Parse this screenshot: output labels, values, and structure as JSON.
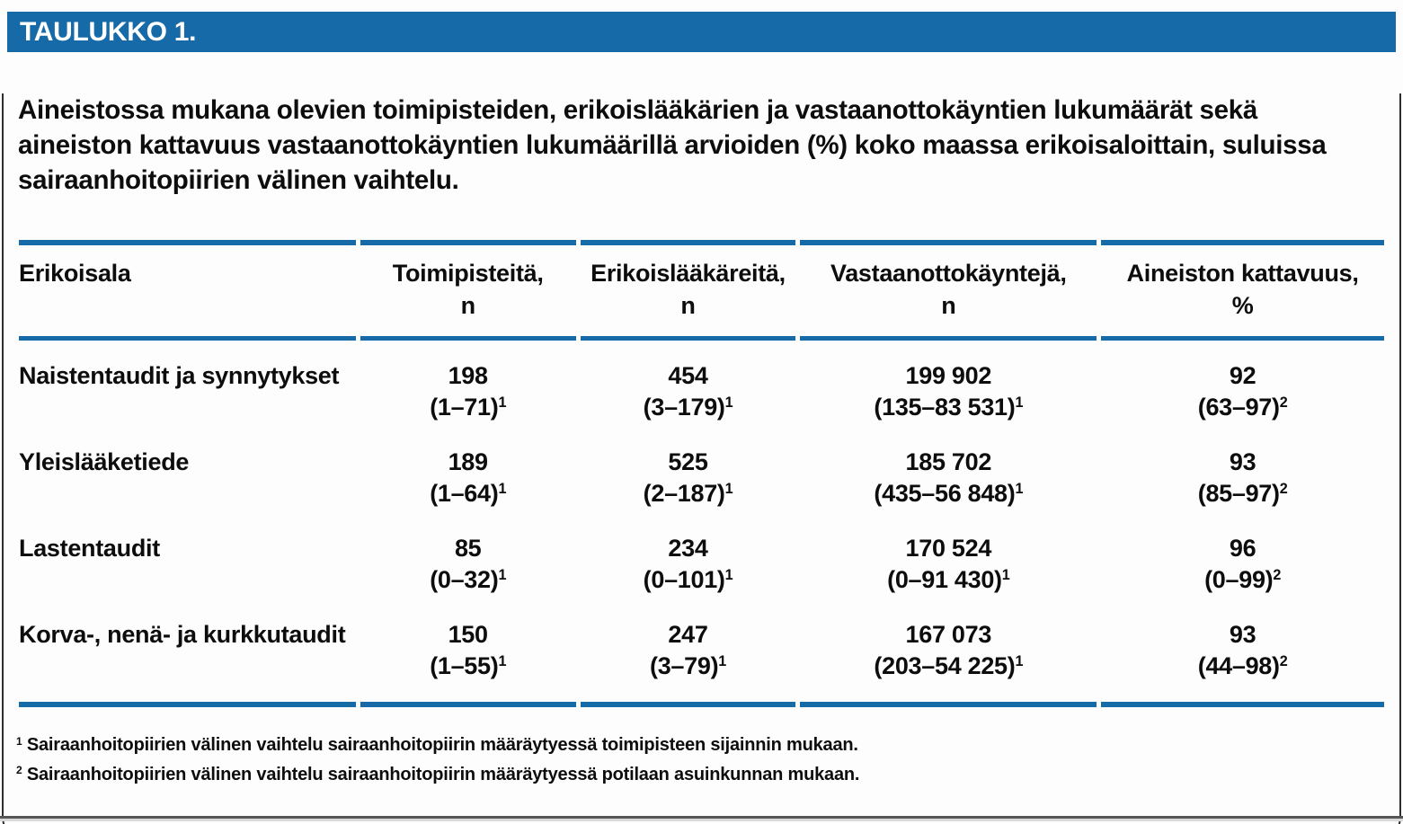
{
  "page": {
    "tag_label": "TAULUKKO 1.",
    "title": "Aineistossa mukana olevien toimipisteiden, erikoislääkärien ja vastaanottokäyntien lukumäärät sekä aineiston kattavuus vastaanottokäyntien lukumäärillä arvioiden (%) koko maassa erikoisaloittain, suluissa sairaanhoitopiirien välinen vaihtelu."
  },
  "colors": {
    "accent_blue": "#176AA8",
    "card_border": "#2e2e2e",
    "text": "#0d0d0d"
  },
  "table": {
    "columns": [
      {
        "label": "Erikoisala",
        "sub": ""
      },
      {
        "label": "Toimipisteitä,",
        "sub": "n"
      },
      {
        "label": "Erikoislääkäreitä,",
        "sub": "n"
      },
      {
        "label": "Vastaanottokäyntejä,",
        "sub": "n"
      },
      {
        "label": "Aineiston kattavuus,",
        "sub": "%"
      }
    ],
    "rows": [
      {
        "name": "Naistentaudit ja synnytykset",
        "cells": [
          {
            "value": "198",
            "range": "(1–71)",
            "sup": "1"
          },
          {
            "value": "454",
            "range": "(3–179)",
            "sup": "1"
          },
          {
            "value": "199 902",
            "range": "(135–83 531)",
            "sup": "1"
          },
          {
            "value": "92",
            "range": "(63–97)",
            "sup": "2"
          }
        ]
      },
      {
        "name": "Yleislääketiede",
        "cells": [
          {
            "value": "189",
            "range": "(1–64)",
            "sup": "1"
          },
          {
            "value": "525",
            "range": "(2–187)",
            "sup": "1"
          },
          {
            "value": "185 702",
            "range": "(435–56 848)",
            "sup": "1"
          },
          {
            "value": "93",
            "range": "(85–97)",
            "sup": "2"
          }
        ]
      },
      {
        "name": "Lastentaudit",
        "cells": [
          {
            "value": "85",
            "range": "(0–32)",
            "sup": "1"
          },
          {
            "value": "234",
            "range": "(0–101)",
            "sup": "1"
          },
          {
            "value": "170 524",
            "range": "(0–91 430)",
            "sup": "1"
          },
          {
            "value": "96",
            "range": "(0–99)",
            "sup": "2"
          }
        ]
      },
      {
        "name": "Korva-, nenä- ja kurkkutaudit",
        "cells": [
          {
            "value": "150",
            "range": "(1–55)",
            "sup": "1"
          },
          {
            "value": "247",
            "range": "(3–79)",
            "sup": "1"
          },
          {
            "value": "167 073",
            "range": "(203–54 225)",
            "sup": "1"
          },
          {
            "value": "93",
            "range": "(44–98)",
            "sup": "2"
          }
        ]
      }
    ]
  },
  "footnotes": [
    {
      "marker": "1",
      "text": "Sairaanhoitopiirien välinen vaihtelu sairaanhoitopiirin määräytyessä toimipisteen sijainnin mukaan."
    },
    {
      "marker": "2",
      "text": "Sairaanhoitopiirien välinen vaihtelu sairaanhoitopiirin määräytyessä potilaan asuinkunnan mukaan."
    }
  ]
}
